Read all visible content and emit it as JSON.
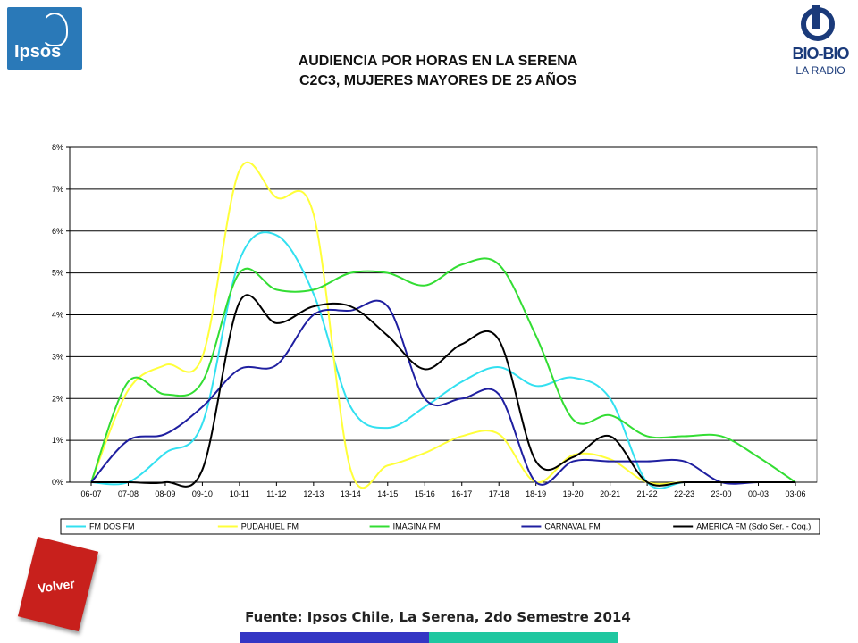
{
  "header": {
    "title_line1": "AUDIENCIA POR HORAS EN LA SERENA",
    "title_line2": "C2C3, MUJERES MAYORES DE 25 AÑOS"
  },
  "logos": {
    "ipsos": "Ipsos",
    "biobio": "BIO-BIO",
    "biobio_sub": "LA RADIO"
  },
  "nav": {
    "volver_label": "Volver"
  },
  "footer": {
    "source": "Fuente: Ipsos Chile, La Serena, 2do Semestre 2014",
    "bar_colors": [
      "#3436c4",
      "#1fc7a0"
    ]
  },
  "chart_data": {
    "type": "line",
    "title": "",
    "xlabel": "",
    "ylabel": "",
    "categories": [
      "06-07",
      "07-08",
      "08-09",
      "09-10",
      "10-11",
      "11-12",
      "12-13",
      "13-14",
      "14-15",
      "15-16",
      "16-17",
      "17-18",
      "18-19",
      "19-20",
      "20-21",
      "21-22",
      "22-23",
      "23-00",
      "00-03",
      "03-06"
    ],
    "yticks": [
      "0%",
      "1%",
      "2%",
      "3%",
      "4%",
      "5%",
      "6%",
      "7%",
      "8%"
    ],
    "ylim": [
      0,
      8
    ],
    "grid": true,
    "legend_position": "bottom",
    "series": [
      {
        "name": "FM DOS FM",
        "color": "#33e0f0",
        "values": [
          0,
          0,
          0.7,
          1.4,
          5.3,
          5.9,
          4.5,
          1.8,
          1.3,
          1.8,
          2.4,
          2.75,
          2.3,
          2.5,
          2.0,
          0,
          0,
          0,
          0,
          0
        ]
      },
      {
        "name": "PUDAHUEL FM",
        "color": "#ffff3a",
        "values": [
          0,
          2.2,
          2.8,
          3.0,
          7.45,
          6.8,
          6.4,
          0.3,
          0.4,
          0.7,
          1.1,
          1.15,
          0,
          0.65,
          0.55,
          0,
          0,
          0,
          0,
          0
        ]
      },
      {
        "name": "IMAGINA FM",
        "color": "#33dd33",
        "values": [
          0,
          2.4,
          2.1,
          2.4,
          5.0,
          4.6,
          4.6,
          5.0,
          5.0,
          4.7,
          5.2,
          5.2,
          3.5,
          1.5,
          1.6,
          1.1,
          1.1,
          1.1,
          0.6,
          0
        ]
      },
      {
        "name": "CARNAVAL FM",
        "color": "#1f1fa0",
        "values": [
          0,
          1.0,
          1.15,
          1.8,
          2.7,
          2.8,
          4.0,
          4.1,
          4.2,
          2.0,
          2.0,
          2.1,
          0,
          0.5,
          0.5,
          0.5,
          0.5,
          0,
          0,
          0
        ]
      },
      {
        "name": "AMERICA FM  (Solo Ser. - Coq.)",
        "color": "#000000",
        "values": [
          0,
          0,
          0,
          0.3,
          4.3,
          3.8,
          4.2,
          4.2,
          3.5,
          2.7,
          3.3,
          3.4,
          0.5,
          0.6,
          1.1,
          0,
          0,
          0,
          0,
          0
        ]
      }
    ]
  }
}
